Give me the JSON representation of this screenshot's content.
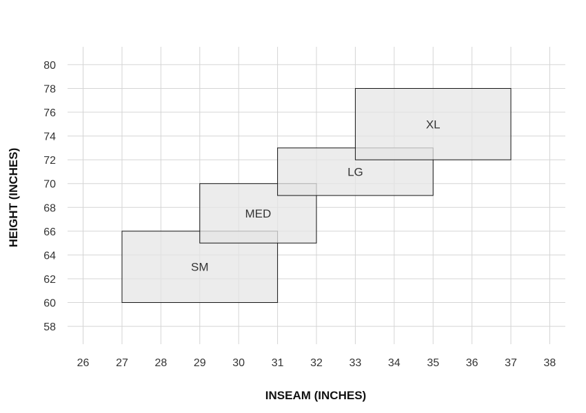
{
  "chart_data": {
    "type": "range-rectangles",
    "title": "",
    "xlabel": "INSEAM (INCHES)",
    "ylabel": "HEIGHT (INCHES)",
    "xlim": [
      25.6,
      38.4
    ],
    "ylim": [
      56.5,
      81.5
    ],
    "x_ticks": [
      26,
      27,
      28,
      29,
      30,
      31,
      32,
      33,
      34,
      35,
      36,
      37,
      38
    ],
    "y_ticks": [
      58,
      60,
      62,
      64,
      66,
      68,
      70,
      72,
      74,
      76,
      78,
      80
    ],
    "grid": true,
    "series": [
      {
        "name": "SM",
        "x": [
          27,
          31
        ],
        "y": [
          60,
          66
        ]
      },
      {
        "name": "MED",
        "x": [
          29,
          32
        ],
        "y": [
          65,
          70
        ]
      },
      {
        "name": "LG",
        "x": [
          31,
          35
        ],
        "y": [
          69,
          73
        ]
      },
      {
        "name": "XL",
        "x": [
          33,
          37
        ],
        "y": [
          72,
          78
        ]
      }
    ]
  }
}
